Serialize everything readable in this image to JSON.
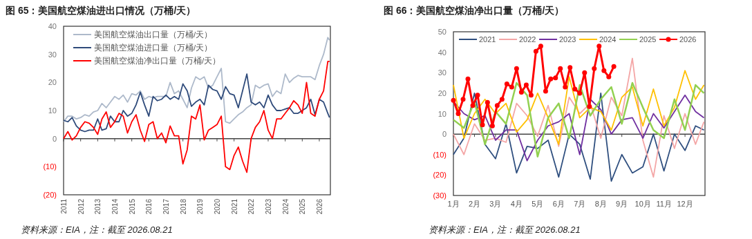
{
  "chart_data": [
    {
      "type": "line",
      "title": "图 65：美国航空煤油进出口情况（万桶/天）",
      "legend": "top left",
      "xlim": [
        2011,
        2026.65
      ],
      "ylim": [
        -20,
        40
      ],
      "xticks": [
        2011,
        2012,
        2013,
        2014,
        2015,
        2016,
        2017,
        2018,
        2019,
        2020,
        2021,
        2022,
        2023,
        2024,
        2025,
        2026
      ],
      "yticks": [
        {
          "value": -20,
          "label": "(20)"
        },
        {
          "value": -10,
          "label": "(10)"
        },
        0,
        10,
        20,
        30,
        40
      ],
      "x": [
        2011,
        2011.25,
        2011.5,
        2011.75,
        2012,
        2012.25,
        2012.5,
        2012.75,
        2013,
        2013.25,
        2013.5,
        2013.75,
        2014,
        2014.25,
        2014.5,
        2014.75,
        2015,
        2015.25,
        2015.5,
        2015.75,
        2016,
        2016.25,
        2016.5,
        2016.75,
        2017,
        2017.25,
        2017.5,
        2017.75,
        2018,
        2018.25,
        2018.5,
        2018.75,
        2019,
        2019.25,
        2019.5,
        2019.75,
        2020,
        2020.25,
        2020.5,
        2020.75,
        2021,
        2021.25,
        2021.5,
        2021.75,
        2022,
        2022.25,
        2022.5,
        2022.75,
        2023,
        2023.25,
        2023.5,
        2023.75,
        2024,
        2024.25,
        2024.5,
        2024.75,
        2025,
        2025.25,
        2025.5,
        2025.75,
        2026,
        2026.25,
        2026.5,
        2026.6
      ],
      "series": [
        {
          "name": "美国航空煤油出口量（万桶/天）",
          "color": "#adb9ca",
          "values": [
            6,
            8,
            8,
            7,
            7.5,
            8.5,
            8,
            9.5,
            10,
            12.5,
            11,
            13,
            15,
            14,
            15.5,
            13,
            16,
            15.5,
            17,
            14,
            15,
            14.5,
            15,
            15,
            15,
            20,
            16,
            17,
            14,
            11,
            18,
            22,
            21,
            22,
            18,
            19,
            22,
            25,
            6,
            5.5,
            7,
            8.5,
            9.5,
            11,
            12,
            19,
            18,
            19,
            19.5,
            15,
            17,
            16,
            23,
            20,
            21.5,
            22.5,
            22,
            22,
            22,
            21,
            26,
            30,
            36,
            35
          ]
        },
        {
          "name": "美国航空煤油进口量（万桶/天）",
          "color": "#2e4a7a",
          "values": [
            6.5,
            6,
            7.5,
            4.5,
            3,
            2.5,
            3,
            3,
            7,
            3,
            3.5,
            8,
            6,
            6,
            10,
            8,
            9,
            12,
            16.5,
            12,
            8,
            15,
            13.5,
            14,
            15.5,
            14,
            15,
            14,
            19.5,
            17,
            11.5,
            13,
            14,
            12,
            19,
            17.5,
            17,
            14,
            18.5,
            16,
            15.5,
            11,
            17,
            23,
            13,
            12,
            13,
            11,
            15.5,
            12,
            10,
            10,
            10.5,
            11,
            9,
            9,
            10,
            11,
            14,
            8.5,
            14,
            13,
            9,
            7.5
          ]
        },
        {
          "name": "美国航空煤油净出口量（万桶/天）",
          "color": "#ff0000",
          "values": [
            0,
            2.5,
            -0.5,
            1,
            4,
            6,
            5.5,
            4,
            1.5,
            7,
            9.5,
            4,
            6,
            9,
            8,
            2,
            6,
            8.5,
            3,
            -1,
            5,
            6,
            0,
            2,
            -1.5,
            4.5,
            1,
            1,
            -9,
            -4,
            8,
            7,
            12,
            -0.5,
            3,
            4,
            5,
            8,
            -10,
            -11,
            -6,
            -3,
            -8,
            -12,
            0,
            4,
            6,
            10,
            3,
            0,
            7,
            7,
            9,
            11,
            13.5,
            12,
            9,
            20,
            9,
            8,
            14,
            17,
            27.5,
            27.5
          ]
        }
      ],
      "annotations": [
        "资料来源：EIA，注：截至 2026.08.21"
      ]
    },
    {
      "type": "line",
      "title": "图 66：美国航空煤油净出口量（万桶/天）",
      "legend": "top",
      "xlim": [
        1,
        12.95
      ],
      "ylim": [
        -30,
        50
      ],
      "xticks": [
        {
          "value": 1,
          "label": "1月"
        },
        {
          "value": 2,
          "label": "2月"
        },
        {
          "value": 3,
          "label": "3月"
        },
        {
          "value": 4,
          "label": "4月"
        },
        {
          "value": 5,
          "label": "5月"
        },
        {
          "value": 6,
          "label": "6月"
        },
        {
          "value": 7,
          "label": "7月"
        },
        {
          "value": 8,
          "label": "8月"
        },
        {
          "value": 9,
          "label": "9月"
        },
        {
          "value": 10,
          "label": "10月"
        },
        {
          "value": 11,
          "label": "11月"
        },
        {
          "value": 12,
          "label": "12月"
        }
      ],
      "yticks": [
        {
          "value": -30,
          "label": "(30)"
        },
        {
          "value": -20,
          "label": "(20)"
        },
        {
          "value": -10,
          "label": "(10)"
        },
        0,
        10,
        20,
        30,
        40,
        50
      ],
      "x": [
        1,
        1.5,
        2,
        2.5,
        3,
        3.5,
        4,
        4.5,
        5,
        5.5,
        6,
        6.5,
        7,
        7.5,
        8,
        8.5,
        9,
        9.5,
        10,
        10.5,
        11,
        11.5,
        12,
        12.5,
        12.9
      ],
      "series": [
        {
          "name": "2021",
          "color": "#2f4f7f",
          "values": [
            -10,
            -2,
            20,
            -5,
            -12,
            5,
            -19,
            -6,
            -7,
            -3,
            -21,
            0,
            -5,
            -22,
            20,
            -23,
            -10,
            -19,
            -16,
            0,
            -18,
            0,
            -8,
            4,
            2
          ]
        },
        {
          "name": "2022",
          "color": "#f4a6a6",
          "values": [
            0,
            -10,
            5,
            -3,
            -2,
            -4,
            15,
            9,
            -1,
            14,
            -6,
            18,
            10,
            15,
            -2,
            18,
            9,
            37,
            -3,
            -21,
            9,
            -7,
            10,
            -5,
            6
          ]
        },
        {
          "name": "2023",
          "color": "#7030a0",
          "values": [
            16,
            10,
            7,
            9,
            -3,
            2,
            2,
            -13,
            -3,
            4,
            6,
            10,
            -10,
            17,
            12,
            0,
            7,
            8,
            -2,
            10,
            3,
            11,
            19,
            11,
            8
          ]
        },
        {
          "name": "2024",
          "color": "#ffc000",
          "values": [
            24,
            -2,
            10,
            17,
            10,
            15,
            1,
            7,
            20,
            8,
            -5,
            28,
            8,
            13,
            11,
            2,
            18,
            23,
            4,
            22,
            4,
            13,
            31,
            17,
            24
          ]
        },
        {
          "name": "2025",
          "color": "#92d050",
          "values": [
            7,
            3,
            16,
            -5,
            11,
            5,
            25,
            19,
            -11,
            8,
            15,
            -2,
            24,
            9,
            17,
            23,
            5,
            25,
            13,
            2,
            -2,
            17,
            2,
            24,
            20
          ]
        },
        {
          "name": "2026",
          "color": "#ff0000",
          "marker": "circle",
          "x": [
            1,
            1.23,
            1.46,
            1.69,
            1.92,
            2.15,
            2.38,
            2.62,
            2.85,
            3.08,
            3.31,
            3.54,
            3.77,
            4,
            4.23,
            4.46,
            4.69,
            4.92,
            5.15,
            5.38,
            5.62,
            5.85,
            6.08,
            6.31,
            6.54,
            6.77,
            7,
            7.23,
            7.46,
            7.69,
            7.92,
            8.15,
            8.38,
            8.62
          ],
          "values": [
            16.5,
            10,
            17,
            27,
            14,
            19,
            4.5,
            15.5,
            4,
            14,
            17,
            24.5,
            23,
            32,
            20.5,
            24,
            19,
            40.5,
            43,
            21,
            27,
            27.5,
            32,
            23,
            32.5,
            22,
            20,
            30,
            13.5,
            32,
            43,
            31,
            28,
            33
          ]
        }
      ],
      "annotations": [
        "资料来源：EIA，注：截至 2026.08.21"
      ]
    }
  ]
}
